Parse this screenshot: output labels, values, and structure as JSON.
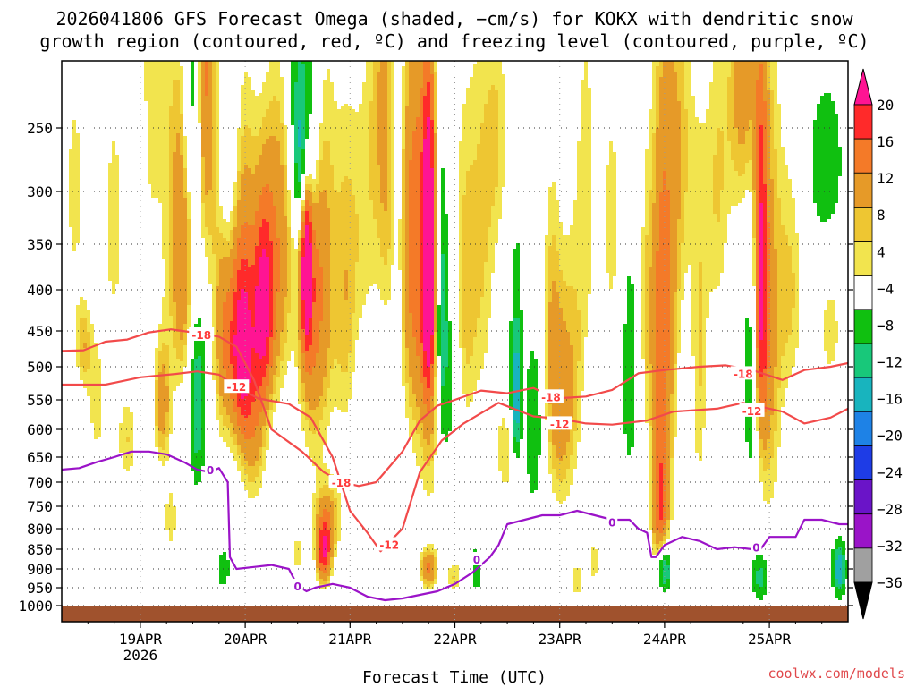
{
  "chart_data": {
    "type": "heatmap",
    "title_line1": "2026041806 GFS Forecast Omega (shaded, −cm/s) for KOKX with dendritic snow",
    "title_line2": "growth region (contoured, red, ºC) and freezing level (contoured, purple, ºC)",
    "xlabel": "Forecast Time (UTC)",
    "credit": "coolwx.com/models",
    "x_range_hours": [
      0,
      180
    ],
    "x_start": "2026041806",
    "x_ticks": [
      {
        "hour": 18,
        "label": "19APR",
        "sub": "2026"
      },
      {
        "hour": 42,
        "label": "20APR",
        "sub": ""
      },
      {
        "hour": 66,
        "label": "21APR",
        "sub": ""
      },
      {
        "hour": 90,
        "label": "22APR",
        "sub": ""
      },
      {
        "hour": 114,
        "label": "23APR",
        "sub": ""
      },
      {
        "hour": 138,
        "label": "24APR",
        "sub": ""
      },
      {
        "hour": 162,
        "label": "25APR",
        "sub": ""
      }
    ],
    "y_range_hpa": [
      200,
      1020
    ],
    "y_ticks": [
      250,
      300,
      350,
      400,
      450,
      500,
      550,
      600,
      650,
      700,
      750,
      800,
      850,
      900,
      950,
      1000
    ],
    "colorbar": {
      "labels": [
        "20",
        "16",
        "12",
        "8",
        "4",
        "−4",
        "−8",
        "−12",
        "−16",
        "−20",
        "−24",
        "−28",
        "−32",
        "−36"
      ],
      "colors": [
        "#ff1493",
        "#ff2a2a",
        "#f47a28",
        "#e69a28",
        "#eec632",
        "#f2e44e",
        "#ffffff",
        "#10c010",
        "#18c87a",
        "#18b4be",
        "#1e82e6",
        "#1e3ce6",
        "#6a14c8",
        "#9a14c8",
        "#a0a0a0",
        "#000000"
      ]
    },
    "surface_color": "#a0522d",
    "omega_blobs": [
      {
        "h": 3,
        "p": 300,
        "dh": 2.5,
        "dp": 120,
        "v": 5
      },
      {
        "h": 5,
        "p": 470,
        "dh": 2,
        "dp": 60,
        "v": 7
      },
      {
        "h": 8,
        "p": 560,
        "dh": 2.5,
        "dp": 120,
        "v": 5
      },
      {
        "h": 12,
        "p": 330,
        "dh": 3,
        "dp": 150,
        "v": 5
      },
      {
        "h": 15,
        "p": 620,
        "dh": 2.5,
        "dp": 90,
        "v": 6
      },
      {
        "h": 17,
        "p": 250,
        "dh": 2,
        "dp": 70,
        "v": -6
      },
      {
        "h": 20,
        "p": 200,
        "dh": 3,
        "dp": 150,
        "v": 6
      },
      {
        "h": 23,
        "p": 560,
        "dh": 2,
        "dp": 100,
        "v": 10
      },
      {
        "h": 26,
        "p": 300,
        "dh": 3.5,
        "dp": 200,
        "v": 6
      },
      {
        "h": 28,
        "p": 380,
        "dh": 2.5,
        "dp": 150,
        "v": 8
      },
      {
        "h": 30,
        "p": 220,
        "dh": 2,
        "dp": 100,
        "v": -10
      },
      {
        "h": 31,
        "p": 550,
        "dh": 2,
        "dp": 150,
        "v": -12
      },
      {
        "h": 33,
        "p": 200,
        "dh": 2.5,
        "dp": 150,
        "v": 13
      },
      {
        "h": 37,
        "p": 450,
        "dh": 2.5,
        "dp": 160,
        "v": 11
      },
      {
        "h": 38,
        "p": 260,
        "dh": 2,
        "dp": 100,
        "v": -6
      },
      {
        "h": 41,
        "p": 480,
        "dh": 2.5,
        "dp": 120,
        "v": 15
      },
      {
        "h": 42,
        "p": 400,
        "dh": 3,
        "dp": 200,
        "v": 10
      },
      {
        "h": 44,
        "p": 600,
        "dh": 3,
        "dp": 150,
        "v": 8
      },
      {
        "h": 46,
        "p": 420,
        "dh": 2.2,
        "dp": 120,
        "v": 16
      },
      {
        "h": 48,
        "p": 380,
        "dh": 3,
        "dp": 160,
        "v": 9
      },
      {
        "h": 51,
        "p": 320,
        "dh": 3,
        "dp": 200,
        "v": 6
      },
      {
        "h": 54,
        "p": 200,
        "dh": 3,
        "dp": 90,
        "v": -8
      },
      {
        "h": 55,
        "p": 280,
        "dh": 2,
        "dp": 60,
        "v": -13
      },
      {
        "h": 57,
        "p": 240,
        "dh": 2.5,
        "dp": 90,
        "v": -9
      },
      {
        "h": 56,
        "p": 360,
        "dh": 1.3,
        "dp": 110,
        "v": 20
      },
      {
        "h": 57,
        "p": 420,
        "dh": 3,
        "dp": 220,
        "v": 9
      },
      {
        "h": 60,
        "p": 380,
        "dh": 3.5,
        "dp": 220,
        "v": 8
      },
      {
        "h": 54,
        "p": 860,
        "dh": 1.6,
        "dp": 50,
        "v": 6
      },
      {
        "h": 60,
        "p": 860,
        "dh": 1.7,
        "dp": 80,
        "v": 17
      },
      {
        "h": 61,
        "p": 780,
        "dh": 3.2,
        "dp": 90,
        "v": 9
      },
      {
        "h": 65,
        "p": 420,
        "dh": 2.5,
        "dp": 200,
        "v": 6
      },
      {
        "h": 69,
        "p": 330,
        "dh": 3.5,
        "dp": 150,
        "v": 5
      },
      {
        "h": 73,
        "p": 200,
        "dh": 3,
        "dp": 120,
        "v": 5
      },
      {
        "h": 75,
        "p": 300,
        "dh": 3,
        "dp": 150,
        "v": 6
      },
      {
        "h": 77,
        "p": 300,
        "dh": 2,
        "dp": 200,
        "v": -8
      },
      {
        "h": 80,
        "p": 340,
        "dh": 4,
        "dp": 210,
        "v": 12
      },
      {
        "h": 84,
        "p": 360,
        "dh": 1.5,
        "dp": 160,
        "v": 20
      },
      {
        "h": 85,
        "p": 460,
        "dh": 4.5,
        "dp": 300,
        "v": 9
      },
      {
        "h": 87,
        "p": 420,
        "dh": 1.5,
        "dp": 200,
        "v": -14
      },
      {
        "h": 89,
        "p": 520,
        "dh": 2.5,
        "dp": 200,
        "v": -8
      },
      {
        "h": 92,
        "p": 420,
        "dh": 2.5,
        "dp": 200,
        "v": 6
      },
      {
        "h": 96,
        "p": 350,
        "dh": 3.5,
        "dp": 220,
        "v": 6
      },
      {
        "h": 100,
        "p": 250,
        "dh": 3,
        "dp": 100,
        "v": 5
      },
      {
        "h": 104,
        "p": 450,
        "dh": 1.5,
        "dp": 180,
        "v": -6
      },
      {
        "h": 102,
        "p": 640,
        "dh": 3,
        "dp": 100,
        "v": 6
      },
      {
        "h": 104,
        "p": 560,
        "dh": 1.2,
        "dp": 100,
        "v": -14
      },
      {
        "h": 108,
        "p": 600,
        "dh": 2,
        "dp": 150,
        "v": -8
      },
      {
        "h": 112,
        "p": 450,
        "dh": 2,
        "dp": 200,
        "v": 6
      },
      {
        "h": 114,
        "p": 560,
        "dh": 2.5,
        "dp": 200,
        "v": 8
      },
      {
        "h": 117,
        "p": 520,
        "dh": 2.5,
        "dp": 200,
        "v": 6
      },
      {
        "h": 120,
        "p": 300,
        "dh": 2.5,
        "dp": 200,
        "v": 5
      },
      {
        "h": 126,
        "p": 330,
        "dh": 3,
        "dp": 150,
        "v": 5
      },
      {
        "h": 130,
        "p": 500,
        "dh": 2,
        "dp": 200,
        "v": -7
      },
      {
        "h": 134,
        "p": 420,
        "dh": 2,
        "dp": 200,
        "v": 6
      },
      {
        "h": 137,
        "p": 500,
        "dh": 2,
        "dp": 300,
        "v": 11
      },
      {
        "h": 139,
        "p": 400,
        "dh": 2.5,
        "dp": 300,
        "v": 8
      },
      {
        "h": 142,
        "p": 260,
        "dh": 3,
        "dp": 150,
        "v": 6
      },
      {
        "h": 146,
        "p": 500,
        "dh": 2,
        "dp": 250,
        "v": 6
      },
      {
        "h": 150,
        "p": 300,
        "dh": 3,
        "dp": 150,
        "v": 6
      },
      {
        "h": 156,
        "p": 220,
        "dh": 3.5,
        "dp": 100,
        "v": 10
      },
      {
        "h": 158,
        "p": 520,
        "dh": 2,
        "dp": 200,
        "v": -8
      },
      {
        "h": 160,
        "p": 400,
        "dh": 1.5,
        "dp": 200,
        "v": 18
      },
      {
        "h": 162,
        "p": 450,
        "dh": 3,
        "dp": 320,
        "v": 9
      },
      {
        "h": 167,
        "p": 400,
        "dh": 3,
        "dp": 150,
        "v": 6
      },
      {
        "h": 175,
        "p": 280,
        "dh": 4,
        "dp": 70,
        "v": -8
      },
      {
        "h": 176,
        "p": 450,
        "dh": 3,
        "dp": 100,
        "v": 5
      },
      {
        "h": 118,
        "p": 930,
        "dh": 1.6,
        "dp": 50,
        "v": 6
      },
      {
        "h": 122,
        "p": 880,
        "dh": 2,
        "dp": 80,
        "v": 5
      },
      {
        "h": 138,
        "p": 900,
        "dh": 1.6,
        "dp": 60,
        "v": -15
      },
      {
        "h": 137,
        "p": 760,
        "dh": 2,
        "dp": 120,
        "v": 11
      },
      {
        "h": 160,
        "p": 920,
        "dh": 2,
        "dp": 70,
        "v": -10
      },
      {
        "h": 178,
        "p": 900,
        "dh": 1.6,
        "dp": 70,
        "v": -16
      },
      {
        "h": 84,
        "p": 900,
        "dh": 2,
        "dp": 50,
        "v": 12
      },
      {
        "h": 90,
        "p": 920,
        "dh": 2,
        "dp": 50,
        "v": 6
      },
      {
        "h": 95,
        "p": 900,
        "dh": 1.5,
        "dp": 60,
        "v": -8
      },
      {
        "h": 37,
        "p": 900,
        "dh": 1.5,
        "dp": 50,
        "v": -8
      },
      {
        "h": 25,
        "p": 780,
        "dh": 2,
        "dp": 100,
        "v": 5
      }
    ],
    "contour_minus12": [
      [
        0,
        527
      ],
      [
        10,
        527
      ],
      [
        18,
        516
      ],
      [
        26,
        511
      ],
      [
        31,
        507
      ],
      [
        36,
        512
      ],
      [
        40,
        530
      ],
      [
        45,
        548
      ],
      [
        52,
        557
      ],
      [
        57,
        580
      ],
      [
        62,
        650
      ],
      [
        66,
        760
      ],
      [
        70,
        810
      ],
      [
        73,
        855
      ],
      [
        78,
        800
      ],
      [
        82,
        680
      ],
      [
        87,
        620
      ],
      [
        92,
        590
      ],
      [
        100,
        555
      ],
      [
        108,
        578
      ],
      [
        114,
        582
      ],
      [
        120,
        590
      ],
      [
        126,
        592
      ],
      [
        134,
        585
      ],
      [
        140,
        570
      ],
      [
        150,
        565
      ],
      [
        156,
        555
      ],
      [
        165,
        570
      ],
      [
        170,
        590
      ],
      [
        176,
        580
      ],
      [
        180,
        565
      ]
    ],
    "contour_minus18": [
      [
        0,
        478
      ],
      [
        5,
        477
      ],
      [
        10,
        465
      ],
      [
        15,
        462
      ],
      [
        20,
        452
      ],
      [
        25,
        448
      ],
      [
        30,
        452
      ],
      [
        36,
        458
      ],
      [
        40,
        472
      ],
      [
        44,
        520
      ],
      [
        48,
        600
      ],
      [
        55,
        640
      ],
      [
        60,
        680
      ],
      [
        64,
        700
      ],
      [
        68,
        708
      ],
      [
        72,
        700
      ],
      [
        78,
        640
      ],
      [
        82,
        585
      ],
      [
        86,
        560
      ],
      [
        90,
        550
      ],
      [
        96,
        536
      ],
      [
        102,
        540
      ],
      [
        108,
        532
      ],
      [
        113,
        548
      ],
      [
        120,
        545
      ],
      [
        126,
        535
      ],
      [
        132,
        510
      ],
      [
        138,
        505
      ],
      [
        146,
        500
      ],
      [
        152,
        498
      ],
      [
        158,
        505
      ],
      [
        165,
        520
      ],
      [
        170,
        505
      ],
      [
        176,
        500
      ],
      [
        180,
        495
      ]
    ],
    "contour_zero": [
      [
        0,
        675
      ],
      [
        4,
        672
      ],
      [
        8,
        660
      ],
      [
        12,
        650
      ],
      [
        16,
        640
      ],
      [
        20,
        640
      ],
      [
        24,
        645
      ],
      [
        28,
        660
      ],
      [
        31,
        675
      ],
      [
        34,
        680
      ],
      [
        36,
        672
      ],
      [
        38,
        700
      ],
      [
        38.5,
        870
      ],
      [
        40,
        900
      ],
      [
        44,
        895
      ],
      [
        48,
        890
      ],
      [
        52,
        900
      ],
      [
        54,
        945
      ],
      [
        56,
        960
      ],
      [
        58,
        950
      ],
      [
        62,
        940
      ],
      [
        66,
        950
      ],
      [
        70,
        975
      ],
      [
        74,
        985
      ],
      [
        78,
        980
      ],
      [
        82,
        970
      ],
      [
        86,
        960
      ],
      [
        90,
        940
      ],
      [
        94,
        910
      ],
      [
        96,
        890
      ],
      [
        98,
        870
      ],
      [
        100,
        840
      ],
      [
        102,
        790
      ],
      [
        106,
        780
      ],
      [
        110,
        770
      ],
      [
        114,
        770
      ],
      [
        118,
        760
      ],
      [
        122,
        770
      ],
      [
        126,
        780
      ],
      [
        130,
        780
      ],
      [
        132,
        800
      ],
      [
        134,
        810
      ],
      [
        135,
        870
      ],
      [
        136,
        870
      ],
      [
        138,
        840
      ],
      [
        142,
        820
      ],
      [
        146,
        830
      ],
      [
        150,
        850
      ],
      [
        154,
        845
      ],
      [
        158,
        850
      ],
      [
        160,
        850
      ],
      [
        162,
        820
      ],
      [
        166,
        820
      ],
      [
        168,
        820
      ],
      [
        170,
        780
      ],
      [
        174,
        780
      ],
      [
        178,
        790
      ],
      [
        180,
        790
      ]
    ],
    "contour_labels": [
      {
        "text": "-18",
        "h": 32,
        "p": 455,
        "c": "#ff3a3a"
      },
      {
        "text": "-12",
        "h": 40,
        "p": 530,
        "c": "#ff3a3a"
      },
      {
        "text": "0",
        "h": 34,
        "p": 675,
        "c": "#9b13c8"
      },
      {
        "text": "-18",
        "h": 64,
        "p": 700,
        "c": "#ff3a3a"
      },
      {
        "text": "-12",
        "h": 75,
        "p": 838,
        "c": "#ff3a3a"
      },
      {
        "text": "0",
        "h": 54,
        "p": 945,
        "c": "#9b13c8"
      },
      {
        "text": "0",
        "h": 95,
        "p": 875,
        "c": "#9b13c8"
      },
      {
        "text": "-18",
        "h": 112,
        "p": 545,
        "c": "#ff3a3a"
      },
      {
        "text": "-12",
        "h": 114,
        "p": 590,
        "c": "#ff3a3a"
      },
      {
        "text": "0",
        "h": 126,
        "p": 785,
        "c": "#9b13c8"
      },
      {
        "text": "-18",
        "h": 156,
        "p": 510,
        "c": "#ff3a3a"
      },
      {
        "text": "-12",
        "h": 158,
        "p": 568,
        "c": "#ff3a3a"
      },
      {
        "text": "0",
        "h": 159,
        "p": 845,
        "c": "#9b13c8"
      }
    ]
  }
}
